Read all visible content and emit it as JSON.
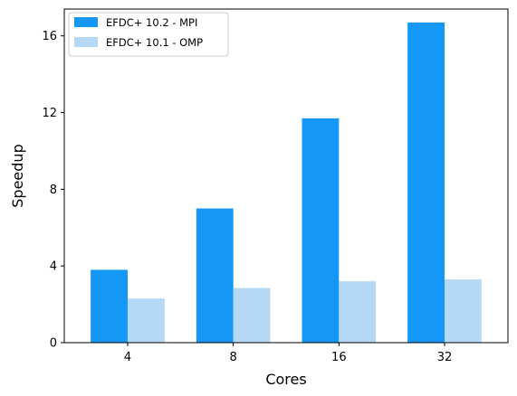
{
  "chart_data": {
    "type": "bar",
    "title": "",
    "xlabel": "Cores",
    "ylabel": "Speedup",
    "categories": [
      "4",
      "8",
      "16",
      "32"
    ],
    "ylim": [
      0,
      17.4
    ],
    "yticks": [
      0,
      4,
      8,
      12,
      16
    ],
    "grid": false,
    "legend_position": "top-left",
    "series": [
      {
        "name": "EFDC+ 10.2 - MPI",
        "color": "#1497f5",
        "values": [
          3.8,
          7.0,
          11.7,
          16.7
        ]
      },
      {
        "name": "EFDC+ 10.1 - OMP",
        "color": "#b5d9f4",
        "values": [
          2.3,
          2.85,
          3.2,
          3.3
        ]
      }
    ]
  }
}
